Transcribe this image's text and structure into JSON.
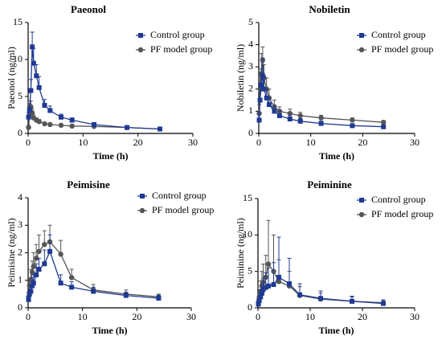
{
  "colors": {
    "control": "#1f3a93",
    "pf": "#555555"
  },
  "chart_data": [
    {
      "type": "line",
      "title": "Paeonol",
      "xlabel": "Time (h)",
      "ylabel": "Paeonol (ng/ml)",
      "xlim": [
        0,
        30
      ],
      "ylim": [
        0,
        15
      ],
      "xticks": [
        "0",
        "10",
        "20",
        "30"
      ],
      "yticks": [
        "0",
        "5",
        "10",
        "15"
      ],
      "legend_position": "top-right",
      "series": [
        {
          "name": "Control group",
          "marker": "square",
          "x": [
            0.083,
            0.25,
            0.5,
            0.75,
            1,
            1.5,
            2,
            3,
            4,
            6,
            8,
            12,
            18,
            24
          ],
          "y": [
            2.2,
            3.2,
            5.8,
            11.7,
            9.5,
            7.8,
            6.2,
            3.8,
            3.1,
            2.2,
            1.8,
            1.2,
            0.8,
            0.6
          ],
          "err": [
            0.6,
            0.8,
            1.5,
            2.0,
            2.0,
            1.5,
            1.5,
            0.8,
            0.6,
            0.4,
            0.3,
            0.2,
            0.15,
            0.1
          ]
        },
        {
          "name": "PF model group",
          "marker": "circle",
          "x": [
            0.083,
            0.25,
            0.5,
            0.75,
            1,
            1.5,
            2,
            3,
            4,
            6,
            8,
            12,
            18,
            24
          ],
          "y": [
            0.8,
            2.5,
            3.6,
            2.8,
            2.1,
            1.8,
            1.6,
            1.3,
            1.2,
            1.1,
            1.0,
            0.95,
            0.8,
            0.6
          ],
          "err": [
            0.3,
            0.5,
            0.8,
            0.5,
            0.4,
            0.3,
            0.3,
            0.2,
            0.2,
            0.2,
            0.15,
            0.15,
            0.1,
            0.1
          ]
        }
      ]
    },
    {
      "type": "line",
      "title": "Nobiletin",
      "xlabel": "Time (h)",
      "ylabel": "Nobiletin (ng/ml)",
      "xlim": [
        0,
        30
      ],
      "ylim": [
        0,
        5
      ],
      "xticks": [
        "0",
        "10",
        "20",
        "30"
      ],
      "yticks": [
        "0",
        "1",
        "2",
        "3",
        "4",
        "5"
      ],
      "legend_position": "top-right",
      "series": [
        {
          "name": "Control group",
          "marker": "square",
          "x": [
            0.083,
            0.25,
            0.5,
            0.75,
            1,
            1.5,
            2,
            3,
            4,
            6,
            8,
            12,
            18,
            24
          ],
          "y": [
            0.6,
            1.5,
            2.2,
            2.6,
            2.0,
            1.6,
            1.3,
            1.0,
            0.8,
            0.65,
            0.55,
            0.45,
            0.35,
            0.3
          ],
          "err": [
            0.3,
            0.6,
            0.7,
            0.8,
            0.6,
            0.4,
            0.3,
            0.25,
            0.2,
            0.15,
            0.12,
            0.1,
            0.08,
            0.05
          ]
        },
        {
          "name": "PF model group",
          "marker": "circle",
          "x": [
            0.083,
            0.25,
            0.5,
            0.75,
            1,
            1.5,
            2,
            3,
            4,
            6,
            8,
            12,
            18,
            24
          ],
          "y": [
            0.9,
            2.0,
            2.7,
            3.3,
            2.5,
            2.0,
            1.6,
            1.2,
            1.0,
            0.9,
            0.8,
            0.7,
            0.6,
            0.5
          ],
          "err": [
            0.4,
            0.7,
            0.9,
            0.6,
            0.6,
            0.5,
            0.4,
            0.3,
            0.2,
            0.2,
            0.15,
            0.12,
            0.1,
            0.08
          ]
        }
      ]
    },
    {
      "type": "line",
      "title": "Peimisine",
      "xlabel": "Time (h)",
      "ylabel": "Peimisine (ng/ml)",
      "xlim": [
        0,
        30
      ],
      "ylim": [
        0,
        4
      ],
      "xticks": [
        "0",
        "10",
        "20",
        "30"
      ],
      "yticks": [
        "0",
        "1",
        "2",
        "3",
        "4"
      ],
      "legend_position": "top-right",
      "series": [
        {
          "name": "Control group",
          "marker": "square",
          "x": [
            0.083,
            0.25,
            0.5,
            0.75,
            1,
            1.5,
            2,
            3,
            4,
            6,
            8,
            12,
            18,
            24
          ],
          "y": [
            0.3,
            0.5,
            0.6,
            0.8,
            0.9,
            1.2,
            1.4,
            1.6,
            2.05,
            0.9,
            0.75,
            0.6,
            0.45,
            0.35
          ],
          "err": [
            0.1,
            0.15,
            0.2,
            0.3,
            0.3,
            0.4,
            0.4,
            0.5,
            0.6,
            0.3,
            0.2,
            0.15,
            0.1,
            0.1
          ]
        },
        {
          "name": "PF model group",
          "marker": "circle",
          "x": [
            0.083,
            0.25,
            0.5,
            0.75,
            1,
            1.5,
            2,
            3,
            4,
            6,
            8,
            12,
            18,
            24
          ],
          "y": [
            0.4,
            0.8,
            1.0,
            1.3,
            1.5,
            1.8,
            2.05,
            2.3,
            2.4,
            1.95,
            1.1,
            0.65,
            0.5,
            0.4
          ],
          "err": [
            0.15,
            0.3,
            0.4,
            0.4,
            0.5,
            0.5,
            0.6,
            0.5,
            0.6,
            0.5,
            0.3,
            0.2,
            0.15,
            0.1
          ]
        }
      ]
    },
    {
      "type": "line",
      "title": "Peiminine",
      "xlabel": "Time (h)",
      "ylabel": "Peiminine (ng/ml)",
      "xlim": [
        0,
        30
      ],
      "ylim": [
        0,
        15
      ],
      "xticks": [
        "0",
        "10",
        "20",
        "30"
      ],
      "yticks": [
        "0",
        "5",
        "10",
        "15"
      ],
      "legend_position": "top-right",
      "series": [
        {
          "name": "Control group",
          "marker": "square",
          "x": [
            0.083,
            0.25,
            0.5,
            0.75,
            1,
            1.5,
            2,
            3,
            4,
            6,
            8,
            12,
            18,
            24
          ],
          "y": [
            0.5,
            1.0,
            1.5,
            2.0,
            2.5,
            2.8,
            3.0,
            3.2,
            4.2,
            3.3,
            1.8,
            1.3,
            0.9,
            0.6
          ],
          "err": [
            0.3,
            0.6,
            1.0,
            1.2,
            1.5,
            2.0,
            2.5,
            3.0,
            5.5,
            3.5,
            1.5,
            1.0,
            0.7,
            0.5
          ]
        },
        {
          "name": "PF model group",
          "marker": "circle",
          "x": [
            0.083,
            0.25,
            0.5,
            0.75,
            1,
            1.5,
            2,
            3,
            4,
            6,
            8,
            12,
            18,
            24
          ],
          "y": [
            0.8,
            1.5,
            2.2,
            3.0,
            3.5,
            4.2,
            6.0,
            5.0,
            3.6,
            3.0,
            1.7,
            1.2,
            0.9,
            0.7
          ],
          "err": [
            0.4,
            1.0,
            1.5,
            2.0,
            2.5,
            3.0,
            6.0,
            5.0,
            3.0,
            2.0,
            1.2,
            0.8,
            0.6,
            0.4
          ]
        }
      ]
    }
  ]
}
